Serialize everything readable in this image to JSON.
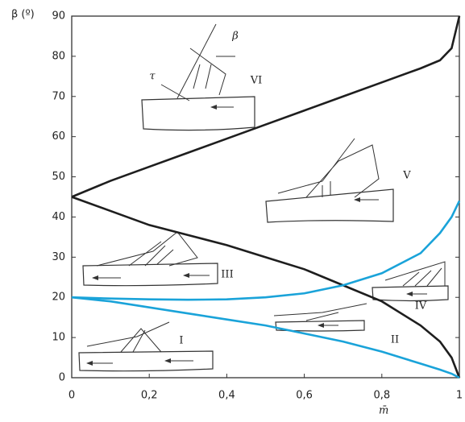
{
  "chart_data": {
    "type": "line",
    "x_label": "m̄",
    "y_label": "β (º)",
    "x": [
      0,
      0.1,
      0.2,
      0.3,
      0.4,
      0.5,
      0.6,
      0.7,
      0.8,
      0.9,
      0.95,
      0.98,
      1
    ],
    "series": [
      {
        "color": "#1e1e1e",
        "values": [
          45,
          49,
          52.5,
          56,
          59.5,
          63,
          66.5,
          70,
          73.5,
          77,
          79,
          82,
          90
        ]
      },
      {
        "color": "#1e1e1e",
        "values": [
          45,
          41.5,
          38,
          35.5,
          33,
          30,
          27,
          23,
          19,
          13,
          9,
          5,
          0
        ]
      },
      {
        "color": "#1aa3d9",
        "values": [
          20,
          19.7,
          19.5,
          19.4,
          19.5,
          20,
          21,
          23,
          26,
          31,
          36,
          40,
          44
        ]
      },
      {
        "color": "#1aa3d9",
        "values": [
          20,
          19,
          17.5,
          16,
          14.5,
          13,
          11,
          9,
          6.5,
          3.5,
          2,
          1,
          0
        ]
      }
    ],
    "annotations": [
      "VI",
      "V",
      "III",
      "IV",
      "II",
      "I",
      "β",
      "τ"
    ],
    "xlim": [
      0,
      1
    ],
    "ylim": [
      0,
      90
    ],
    "xticks": [
      0,
      {
        "value": 0.2,
        "label": "0,2"
      },
      {
        "value": 0.4,
        "label": "0,4"
      },
      {
        "value": 0.6,
        "label": "0,6"
      },
      {
        "value": 0.8,
        "label": "0,8"
      },
      1
    ],
    "yticks": [
      0,
      10,
      20,
      30,
      40,
      50,
      60,
      70,
      80,
      90
    ]
  }
}
